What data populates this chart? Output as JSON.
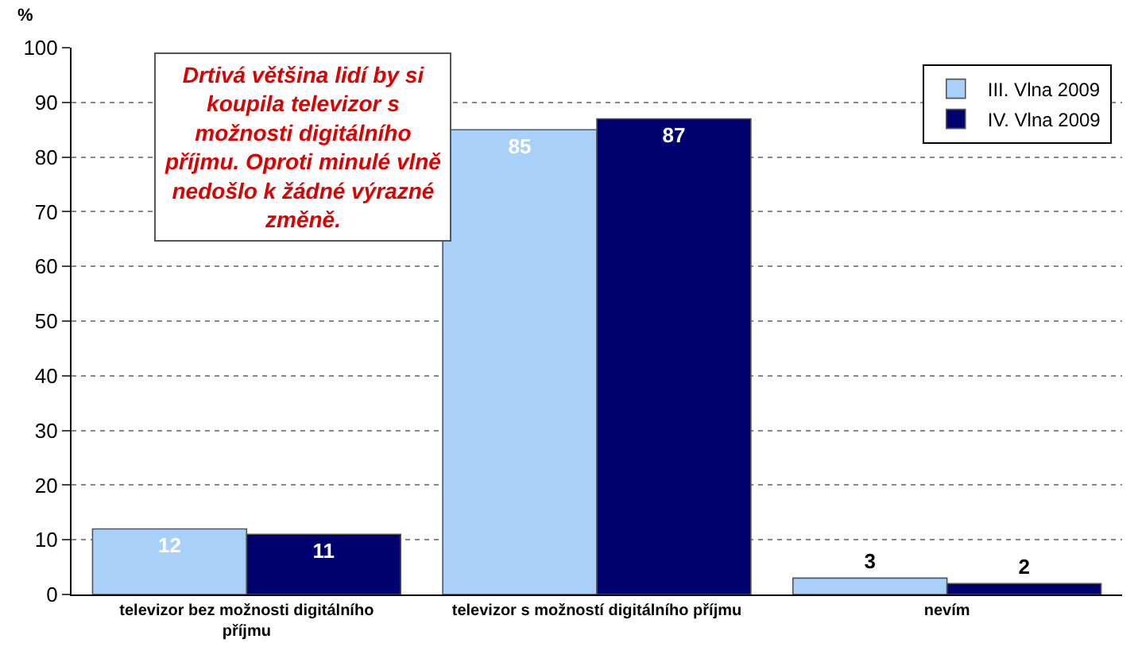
{
  "chart_data": {
    "type": "bar",
    "ylabel": "%",
    "categories": [
      "televizor bez možnosti digitálního příjmu",
      "televizor s možností digitálního příjmu",
      "nevím"
    ],
    "series": [
      {
        "name": "III. Vlna 2009",
        "color": "#a8d0f8",
        "values": [
          12,
          85,
          3
        ]
      },
      {
        "name": "IV. Vlna 2009",
        "color": "#00006e",
        "values": [
          11,
          87,
          2
        ]
      }
    ],
    "ylim": [
      0,
      100
    ],
    "yticks": [
      0,
      10,
      20,
      30,
      40,
      50,
      60,
      70,
      80,
      90,
      100
    ],
    "grid": "y",
    "legend": "top right",
    "data_labels": true,
    "annotations": [
      "Drtivá většina lidí by si koupila televizor s možnosti digitálního příjmu. Oproti minulé vlně nedošlo k žádné výrazné změně."
    ]
  }
}
